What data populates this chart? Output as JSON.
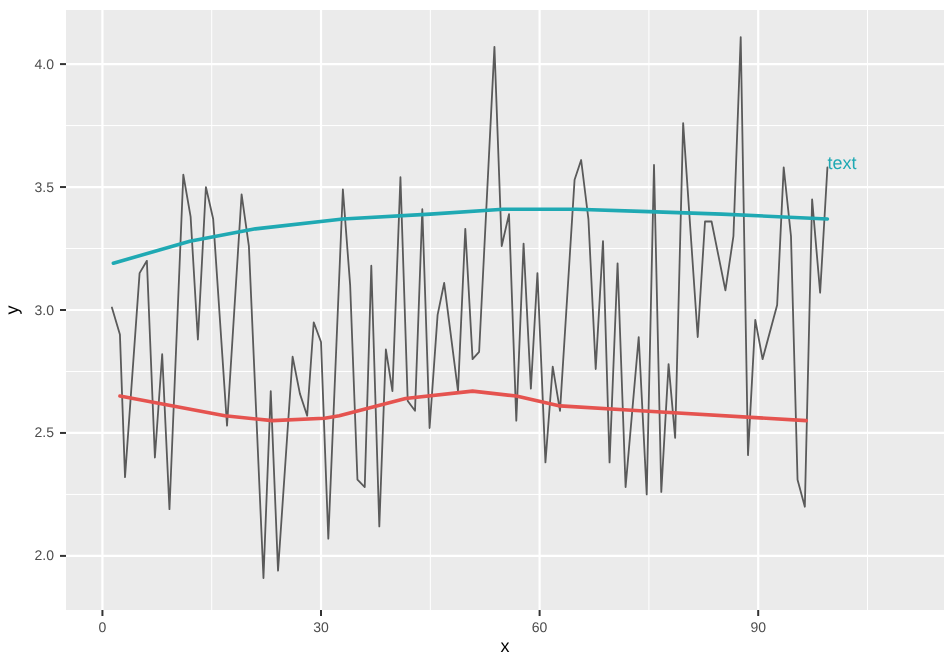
{
  "chart_data": {
    "type": "line",
    "xlabel": "x",
    "ylabel": "y",
    "xlim": [
      -5,
      115.5
    ],
    "ylim": [
      1.78,
      4.22
    ],
    "xticks": [
      0,
      30,
      60,
      90
    ],
    "yticks": [
      {
        "value": 2,
        "label": "2.0"
      },
      {
        "value": 2.5,
        "label": "2.5"
      },
      {
        "value": 3,
        "label": "3.0"
      },
      {
        "value": 3.5,
        "label": "3.5"
      },
      {
        "value": 4,
        "label": "4.0"
      }
    ],
    "grid": true,
    "line_style": "solid",
    "marker": "none",
    "series": [
      {
        "color": "#5a5a5a",
        "x": [
          1.3,
          2.4,
          3.1,
          5.1,
          6.1,
          7.2,
          8.2,
          9.2,
          11.1,
          12.1,
          13.1,
          14.2,
          15.2,
          17.1,
          19.1,
          20.1,
          22.1,
          23.1,
          24.1,
          26.1,
          27.1,
          28.1,
          29,
          30,
          31,
          33,
          34,
          35,
          36,
          36.9,
          38,
          38.9,
          39.8,
          40.9,
          41.9,
          42.9,
          43.9,
          44.9,
          46,
          46.9,
          48.8,
          49.8,
          50.8,
          51.7,
          53.8,
          54.8,
          55.8,
          56.8,
          57.8,
          58.8,
          59.7,
          60.8,
          61.8,
          62.8,
          64.8,
          65.7,
          66.7,
          67.7,
          68.7,
          69.6,
          70.7,
          71.8,
          73.6,
          74.7,
          75.7,
          76.7,
          77.7,
          78.6,
          79.7,
          81.7,
          82.7,
          83.6,
          85.5,
          86.6,
          87.6,
          88.6,
          89.6,
          90.6,
          92.6,
          93.5,
          94.5,
          95.4,
          96.4,
          97.4,
          98.5,
          99.5
        ],
        "values": [
          3.01,
          2.9,
          2.32,
          3.15,
          3.2,
          2.4,
          2.82,
          2.19,
          3.55,
          3.38,
          2.88,
          3.5,
          3.37,
          2.53,
          3.47,
          3.26,
          1.91,
          2.67,
          1.94,
          2.81,
          2.66,
          2.57,
          2.95,
          2.87,
          2.07,
          3.49,
          3.1,
          2.31,
          2.28,
          3.18,
          2.12,
          2.84,
          2.67,
          3.54,
          2.63,
          2.59,
          3.41,
          2.52,
          2.98,
          3.11,
          2.67,
          3.33,
          2.8,
          2.83,
          4.07,
          3.26,
          3.39,
          2.55,
          3.27,
          2.68,
          3.15,
          2.38,
          2.77,
          2.59,
          3.53,
          3.61,
          3.37,
          2.76,
          3.28,
          2.38,
          3.19,
          2.28,
          2.89,
          2.25,
          3.59,
          2.26,
          2.78,
          2.48,
          3.76,
          2.89,
          3.36,
          3.36,
          3.08,
          3.3,
          4.11,
          2.41,
          2.96,
          2.8,
          3.02,
          3.58,
          3.3,
          2.31,
          2.2,
          3.45,
          3.07,
          3.58
        ]
      },
      {
        "color": "#1fa9b3",
        "x": [
          1.5,
          12,
          21,
          33,
          45,
          55,
          65,
          75,
          85,
          99.5
        ],
        "values": [
          3.19,
          3.28,
          3.33,
          3.37,
          3.39,
          3.41,
          3.41,
          3.4,
          3.39,
          3.37
        ]
      },
      {
        "color": "#e5534f",
        "x": [
          2.4,
          16.8,
          23.3,
          30.5,
          32.5,
          41.6,
          50.8,
          56.8,
          62.8,
          73.8,
          96.6
        ],
        "values": [
          2.65,
          2.57,
          2.55,
          2.56,
          2.57,
          2.64,
          2.67,
          2.65,
          2.61,
          2.59,
          2.55
        ]
      }
    ],
    "annotations": [
      {
        "text": "text",
        "x": 99.5,
        "y": 3.6
      }
    ]
  }
}
